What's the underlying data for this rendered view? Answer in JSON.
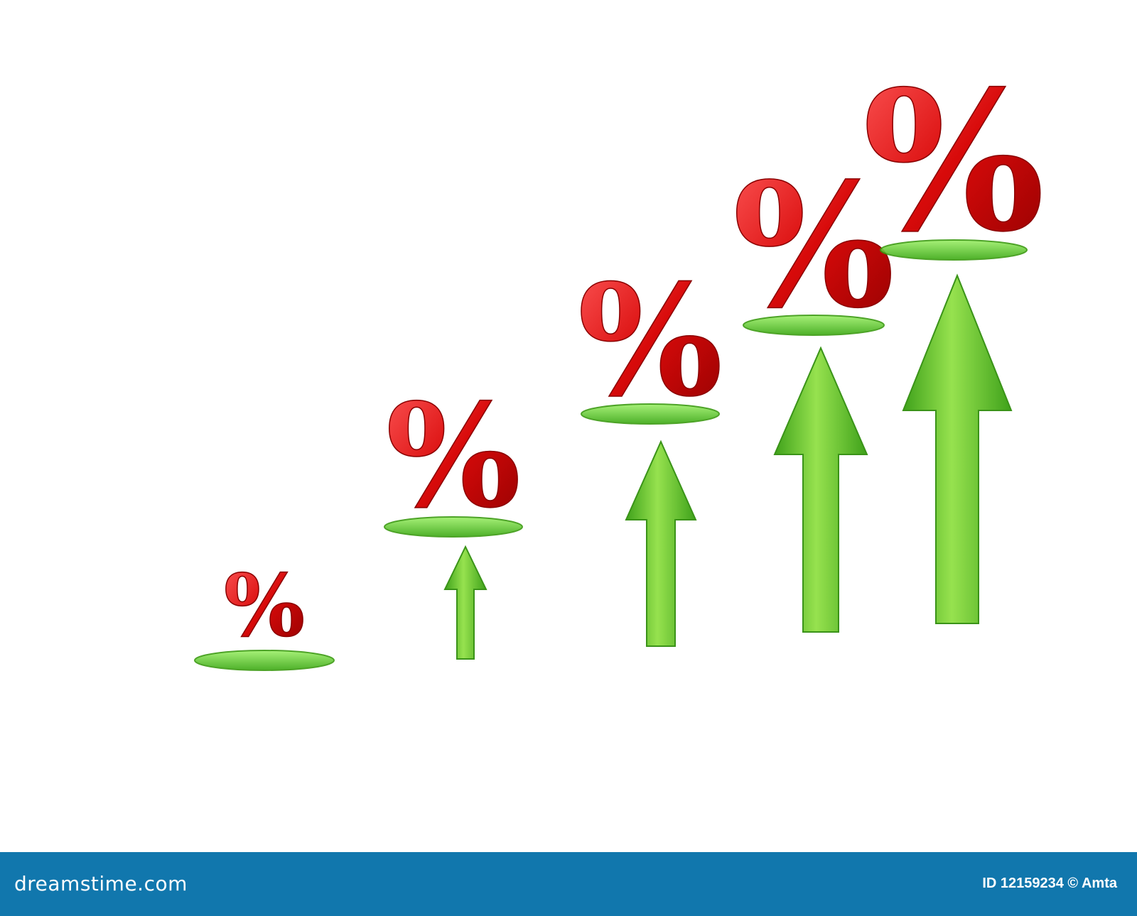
{
  "image": {
    "colors": {
      "percent": "#e01010",
      "arrow": "#44c010",
      "disc": "#6fd83a",
      "footer": "#1177ad"
    },
    "steps": [
      {
        "symbol": "%",
        "arrow": false
      },
      {
        "symbol": "%",
        "arrow": true
      },
      {
        "symbol": "%",
        "arrow": true
      },
      {
        "symbol": "%",
        "arrow": true
      },
      {
        "symbol": "%",
        "arrow": true
      }
    ]
  },
  "footer": {
    "logo": "dreamstime.com",
    "credit": "ID 12159234 © Amta"
  }
}
